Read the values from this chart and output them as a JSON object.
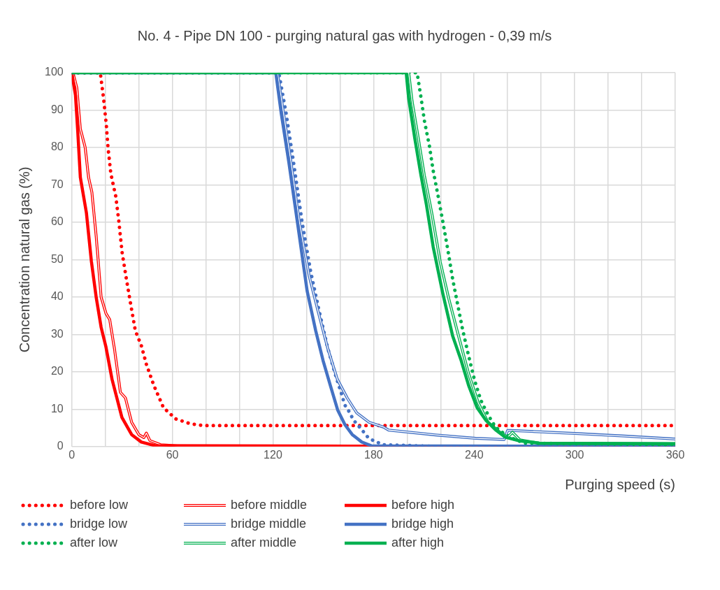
{
  "chart_data": {
    "type": "line",
    "title": "No. 4 - Pipe DN 100 - purging natural gas with hydrogen - 0,39 m/s",
    "xlabel": "Purging speed (s)",
    "ylabel": "Concentration natural gas (%)",
    "xlim": [
      0,
      360
    ],
    "xticks": [
      0,
      {
        "value": 20,
        "label": null
      },
      {
        "value": 40,
        "label": null
      },
      60,
      {
        "value": 80,
        "label": null
      },
      {
        "value": 100,
        "label": null
      },
      120,
      {
        "value": 140,
        "label": null
      },
      {
        "value": 160,
        "label": null
      },
      180,
      {
        "value": 200,
        "label": null
      },
      {
        "value": 220,
        "label": null
      },
      240,
      {
        "value": 260,
        "label": null
      },
      {
        "value": 280,
        "label": null
      },
      300,
      {
        "value": 320,
        "label": null
      },
      {
        "value": 340,
        "label": null
      },
      360
    ],
    "ylim": [
      0,
      100
    ],
    "yticks": [
      0,
      10,
      20,
      30,
      40,
      50,
      60,
      70,
      80,
      90,
      100
    ],
    "grid": true,
    "legend": "bottom",
    "marker": "none",
    "series": [
      {
        "name": "before low",
        "color": "#ff0000",
        "line_style": "dotted",
        "x": [
          0,
          17,
          19,
          20.6,
          21.6,
          23.3,
          26.2,
          28,
          30,
          32.5,
          35,
          37.9,
          41.5,
          44.5,
          49,
          54.7,
          62,
          70.7,
          79,
          360
        ],
        "values": [
          100,
          100,
          93,
          86,
          80,
          73,
          67,
          60.5,
          52,
          45,
          38.4,
          31,
          27,
          22,
          16.3,
          10.4,
          7.4,
          6.1,
          5.6,
          5.6
        ]
      },
      {
        "name": "before middle",
        "color": "#ff0000",
        "line_style": "solid",
        "x": [
          0,
          0.7,
          3,
          5.1,
          8,
          10,
          12,
          14.6,
          17.5,
          20.4,
          22.6,
          25.5,
          29,
          32,
          35.7,
          40,
          43,
          44.5,
          46.6,
          53,
          63,
          360
        ],
        "values": [
          100,
          100,
          96,
          85,
          80,
          72,
          68,
          56,
          40,
          35.6,
          34,
          26,
          14.5,
          13,
          6.5,
          3.2,
          2.4,
          3.6,
          1.6,
          0.5,
          0.2,
          0
        ]
      },
      {
        "name": "before high",
        "color": "#ff0000",
        "line_style": "solid",
        "x": [
          0,
          2.2,
          3.6,
          5.1,
          8.7,
          11.7,
          14.6,
          17.5,
          20.4,
          24,
          29.9,
          35.7,
          41.5,
          50,
          360
        ],
        "values": [
          100,
          94,
          84,
          72,
          62.6,
          49.5,
          39.8,
          31.9,
          26.6,
          18,
          7.8,
          3.2,
          1.2,
          0.2,
          0
        ]
      },
      {
        "name": "bridge low",
        "color": "#4472c4",
        "line_style": "dotted",
        "x": [
          0,
          123.5,
          127.9,
          132.3,
          137.4,
          142.5,
          147.6,
          152.7,
          157.8,
          160.7,
          162.9,
          165.8,
          168,
          173,
          176.6,
          180.2,
          186,
          220,
          360
        ],
        "values": [
          100,
          100,
          89,
          76,
          60,
          46.8,
          36.2,
          26.3,
          18.4,
          14.4,
          11.1,
          9.1,
          7.1,
          4.5,
          2.5,
          1.5,
          0.5,
          0,
          0
        ]
      },
      {
        "name": "bridge middle",
        "color": "#4472c4",
        "line_style": "solid",
        "x": [
          0,
          122.7,
          126.4,
          130.8,
          135.8,
          141.7,
          146.8,
          152.6,
          158.4,
          164.3,
          170,
          177.4,
          186,
          189,
          217,
          241,
          258,
          260,
          262,
          300,
          330,
          360
        ],
        "values": [
          100,
          100,
          89,
          76,
          60,
          45.5,
          36.4,
          26.4,
          18,
          13,
          9,
          6.5,
          5.2,
          4.4,
          3.1,
          2.2,
          1.9,
          4.3,
          4.3,
          3.5,
          2.8,
          2
        ]
      },
      {
        "name": "bridge high",
        "color": "#4472c4",
        "line_style": "solid",
        "x": [
          0,
          121.7,
          125,
          129.5,
          134.6,
          140.4,
          145.5,
          149.9,
          154.2,
          158.6,
          163,
          167.3,
          173,
          178.9,
          360
        ],
        "values": [
          100,
          100,
          89,
          76,
          60,
          41.6,
          31,
          23,
          16.4,
          9.8,
          5.8,
          3.2,
          1.2,
          0.2,
          0
        ]
      },
      {
        "name": "after low",
        "color": "#00b050",
        "line_style": "dotted",
        "x": [
          0,
          206,
          208.2,
          210.4,
          213.3,
          215.5,
          218.4,
          221.4,
          224.3,
          227.2,
          230.1,
          233,
          236.7,
          240.3,
          244,
          248.3,
          252.7,
          258.6,
          264.4,
          270.3,
          360
        ],
        "values": [
          100,
          100,
          93.7,
          87,
          80.5,
          74,
          67.3,
          60,
          52.7,
          44.8,
          38.2,
          31.6,
          24.3,
          17.7,
          12.4,
          8.5,
          5.2,
          3.2,
          1.9,
          0.9,
          0.5
        ]
      },
      {
        "name": "after middle",
        "color": "#00b050",
        "line_style": "solid",
        "x": [
          0,
          201,
          203,
          206.7,
          210.3,
          214.7,
          219.8,
          224.9,
          230.7,
          236.6,
          242.4,
          248.3,
          255.5,
          260,
          262.9,
          267.3,
          279,
          360
        ],
        "values": [
          100,
          100,
          92.4,
          82.5,
          72.6,
          62.6,
          49.4,
          39.5,
          29.6,
          19.7,
          11.8,
          6.5,
          3.8,
          2.5,
          3.8,
          1.8,
          0.9,
          0.8
        ]
      },
      {
        "name": "after high",
        "color": "#00b050",
        "line_style": "solid",
        "x": [
          0,
          199.5,
          201,
          204.6,
          208.3,
          211.6,
          215.6,
          221.4,
          227.2,
          232.3,
          236.7,
          241.8,
          246.9,
          252.7,
          258.6,
          267.3,
          279,
          360
        ],
        "values": [
          100,
          100,
          93,
          82.5,
          72.6,
          64.6,
          53.4,
          40.8,
          29.6,
          23,
          16.4,
          10.4,
          7.1,
          4.5,
          2.5,
          1.5,
          0.9,
          0.7
        ]
      }
    ]
  }
}
